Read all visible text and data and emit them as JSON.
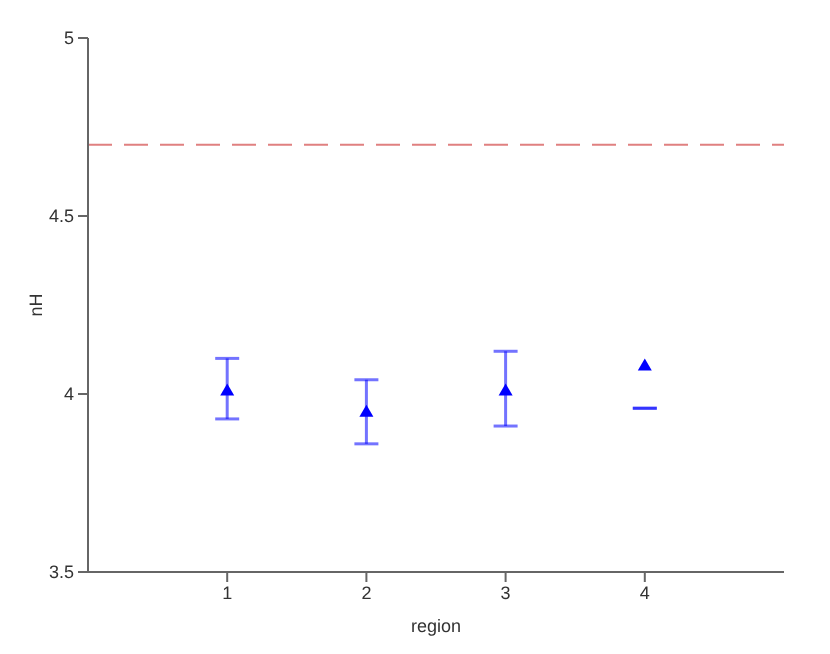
{
  "chart_data": {
    "type": "scatter",
    "xlabel": "region",
    "ylabel": "nH",
    "x": [
      1,
      2,
      3,
      4
    ],
    "series": [
      {
        "color": "#0000ff",
        "values": [
          4.01,
          3.95,
          4.01,
          4.08
        ],
        "errors": [
          [
            3.93,
            4.1
          ],
          [
            3.86,
            4.04
          ],
          [
            3.91,
            4.12
          ],
          [
            3.96,
            3.96
          ]
        ]
      }
    ],
    "marker": "triangle",
    "xlim": [
      0,
      5
    ],
    "xticks": [
      1,
      2,
      3,
      4
    ],
    "ylim": [
      3.5,
      5
    ],
    "yticks": [
      3.5,
      4,
      4.5,
      5
    ],
    "ref_lines": [
      {
        "axis": "y",
        "value": 4.7,
        "color": "#e08080",
        "line_style": "dashed"
      }
    ],
    "grid": false,
    "legend": false
  }
}
